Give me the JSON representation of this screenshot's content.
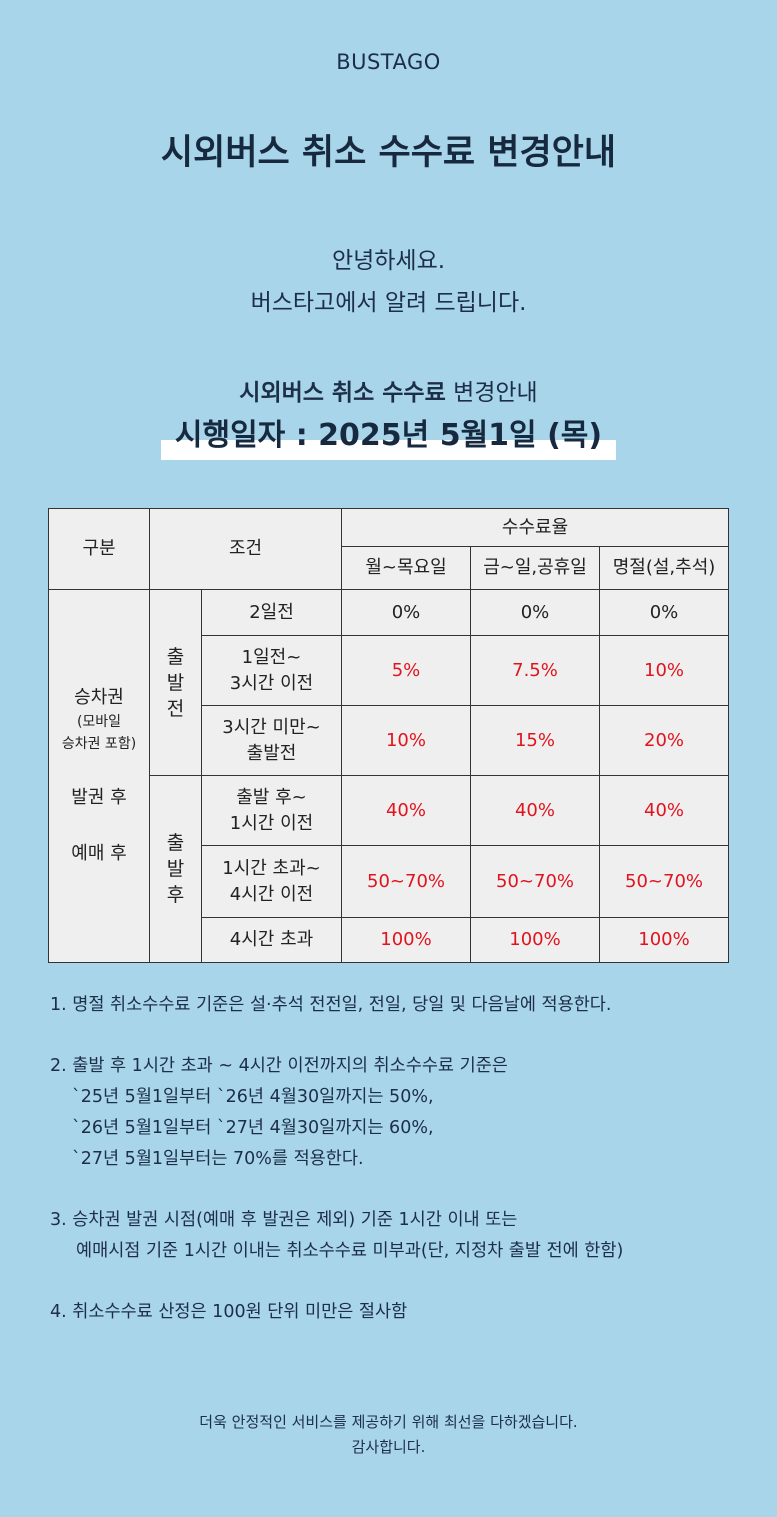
{
  "brand": "BUSTAGO",
  "title": "시외버스 취소 수수료 변경안내",
  "greeting": {
    "line1": "안녕하세요.",
    "line2": "버스타고에서 알려 드립니다."
  },
  "notice": {
    "subtitle_bold": "시외버스 취소 수수료",
    "subtitle_rest": "변경안내",
    "effective_date": "시행일자 : 2025년 5월1일 (목)"
  },
  "table": {
    "header": {
      "category": "구분",
      "condition": "조건",
      "fee_rate": "수수료율",
      "col_weekday": "월~목요일",
      "col_weekend": "금~일,공휴일",
      "col_holiday": "명절(설,추석)"
    },
    "side": {
      "ticket": "승차권",
      "ticket_note1": "(모바일",
      "ticket_note2": "승차권 포함)",
      "after_issue": "발권 후",
      "after_reserve": "예매 후"
    },
    "groups": {
      "before": [
        "출",
        "발",
        "전"
      ],
      "after": [
        "출",
        "발",
        "후"
      ]
    },
    "rows": [
      {
        "cond1": "2일전",
        "cond2": "",
        "weekday": "0%",
        "weekend": "0%",
        "holiday": "0%"
      },
      {
        "cond1": "1일전~",
        "cond2": "3시간 이전",
        "weekday": "5%",
        "weekend": "7.5%",
        "holiday": "10%"
      },
      {
        "cond1": "3시간 미만~",
        "cond2": "출발전",
        "weekday": "10%",
        "weekend": "15%",
        "holiday": "20%"
      },
      {
        "cond1": "출발 후~",
        "cond2": "1시간 이전",
        "weekday": "40%",
        "weekend": "40%",
        "holiday": "40%"
      },
      {
        "cond1": "1시간 초과~",
        "cond2": "4시간 이전",
        "weekday": "50~70%",
        "weekend": "50~70%",
        "holiday": "50~70%"
      },
      {
        "cond1": "4시간 초과",
        "cond2": "",
        "weekday": "100%",
        "weekend": "100%",
        "holiday": "100%"
      }
    ]
  },
  "notes": {
    "n1": "1. 명절 취소수수료 기준은 설·추석 전전일, 전일, 당일 및 다음날에 적용한다.",
    "n2_1": "2. 출발 후 1시간 초과 ~ 4시간 이전까지의 취소수수료 기준은",
    "n2_2": "`25년 5월1일부터 `26년 4월30일까지는 50%,",
    "n2_3": "`26년 5월1일부터 `27년 4월30일까지는 60%,",
    "n2_4": "`27년 5월1일부터는 70%를 적용한다.",
    "n3_1": "3. 승차권 발권 시점(예매 후 발권은 제외) 기준 1시간 이내 또는",
    "n3_2": "예매시점 기준 1시간 이내는 취소수수료 미부과(단, 지정차 출발 전에 한함)",
    "n4": "4. 취소수수료 산정은 100원 단위 미만은 절사함"
  },
  "footer": {
    "line1": "더욱 안정적인 서비스를 제공하기 위해 최선을 다하겠습니다.",
    "line2": "감사합니다."
  },
  "colors": {
    "background": "#a8d5e9",
    "title": "#17293f",
    "highlight_fee": "#e1141e",
    "table_bg": "#efefef"
  }
}
